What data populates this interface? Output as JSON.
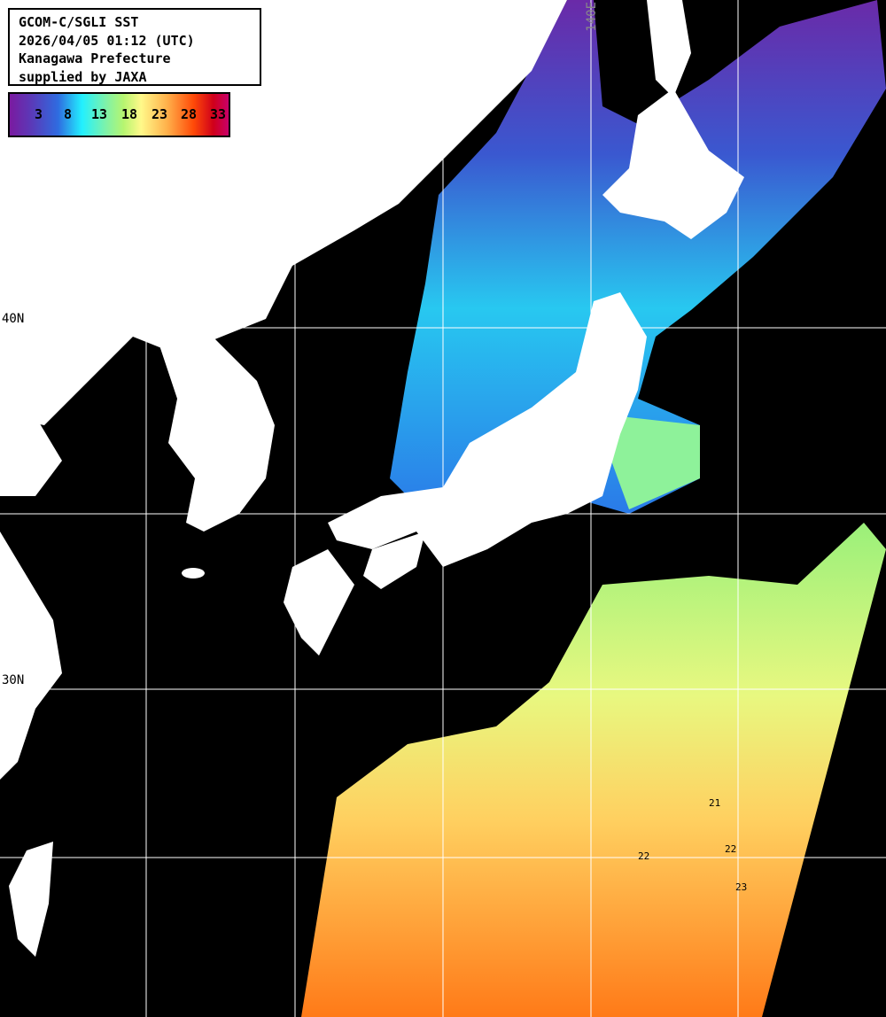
{
  "header": {
    "lines": [
      "GCOM-C/SGLI SST",
      "2026/04/05 01:12 (UTC)",
      "Kanagawa Prefecture",
      "supplied by JAXA"
    ]
  },
  "colorbar": {
    "ticks": [
      "3",
      "8",
      "13",
      "18",
      "23",
      "28",
      "33"
    ],
    "colors": [
      "#7a1aa0",
      "#2f6be0",
      "#22f0ff",
      "#b6f570",
      "#fff98a",
      "#ff4a08",
      "#d0001a",
      "#c8006a"
    ]
  },
  "grid": {
    "lat_labels": [
      "40N",
      "30N"
    ],
    "lon_labels": [
      "140E"
    ]
  },
  "contour_labels": [
    "21",
    "22",
    "22",
    "23"
  ],
  "colors": {
    "land": "#ffffff",
    "no_data": "#000000",
    "grid": "#ffffff"
  }
}
